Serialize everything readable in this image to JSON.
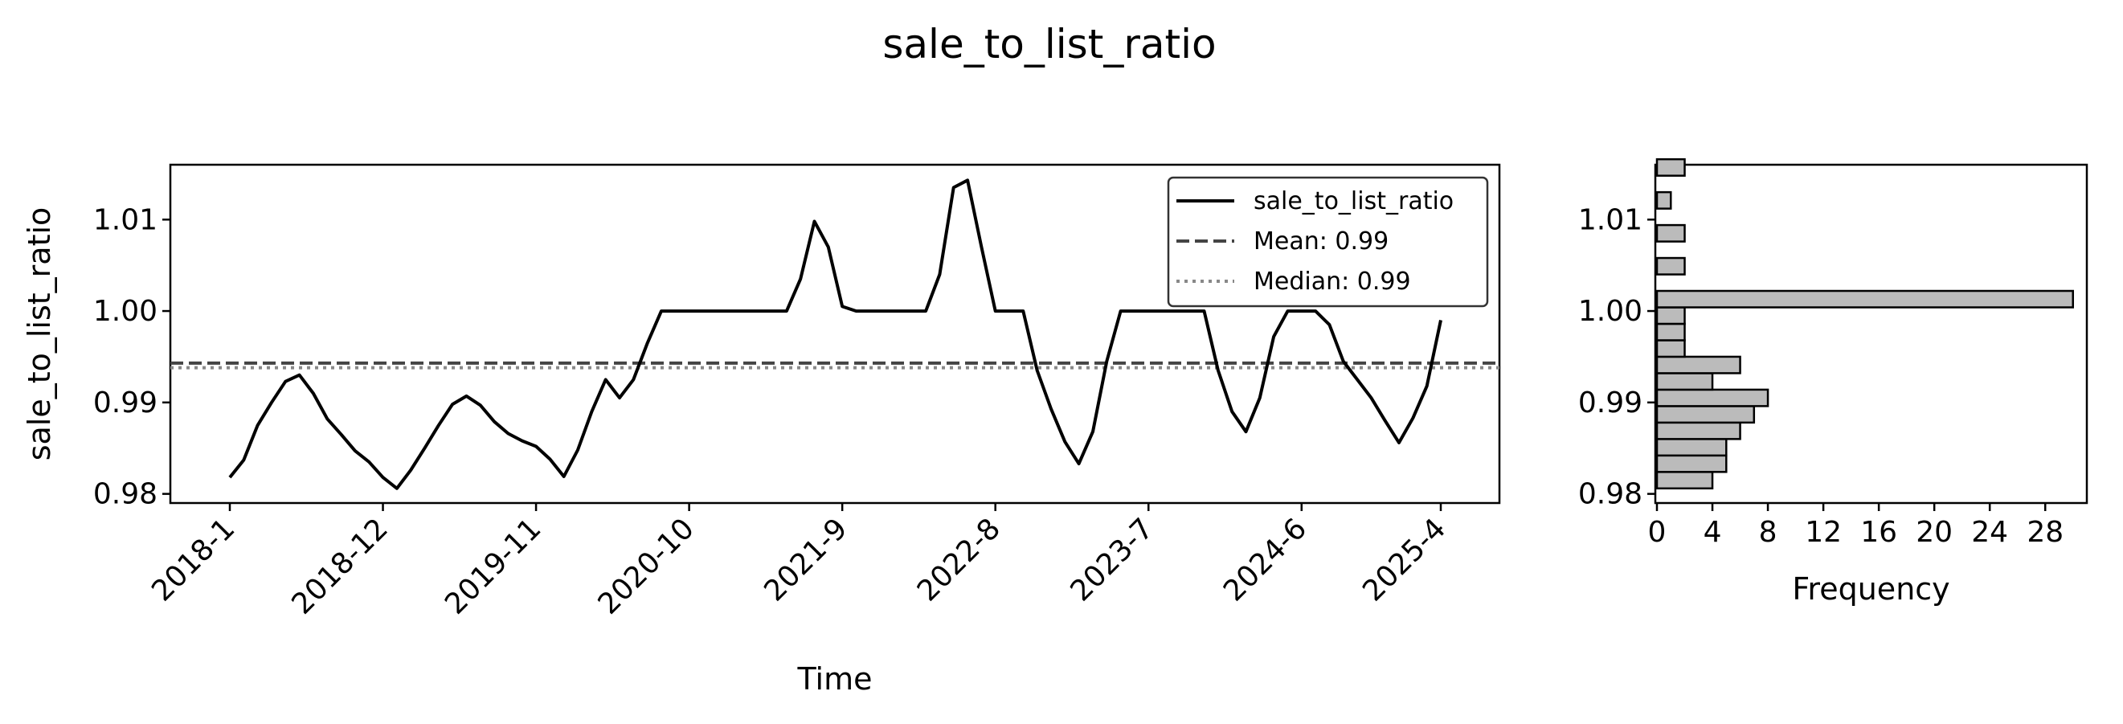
{
  "title": "sale_to_list_ratio",
  "chart_data": [
    {
      "type": "line",
      "xlabel": "Time",
      "ylabel": "sale_to_list_ratio",
      "ylim": [
        0.979,
        1.016
      ],
      "yticks": [
        "0.98",
        "0.99",
        "1.00",
        "1.01"
      ],
      "xtick_labels": [
        "2018-1",
        "2018-12",
        "2019-11",
        "2020-10",
        "2021-9",
        "2022-8",
        "2023-7",
        "2024-6",
        "2025-4"
      ],
      "grid": false,
      "legend_position": "top-right",
      "series": [
        {
          "name": "sale_to_list_ratio",
          "color": "#000000",
          "style": "solid",
          "x": [
            "2018-1",
            "2018-2",
            "2018-3",
            "2018-4",
            "2018-5",
            "2018-6",
            "2018-7",
            "2018-8",
            "2018-9",
            "2018-10",
            "2018-11",
            "2018-12",
            "2019-1",
            "2019-2",
            "2019-3",
            "2019-4",
            "2019-5",
            "2019-6",
            "2019-7",
            "2019-8",
            "2019-9",
            "2019-10",
            "2019-11",
            "2019-12",
            "2020-1",
            "2020-2",
            "2020-3",
            "2020-4",
            "2020-5",
            "2020-6",
            "2020-7",
            "2020-8",
            "2020-9",
            "2020-10",
            "2020-11",
            "2020-12",
            "2021-1",
            "2021-2",
            "2021-3",
            "2021-4",
            "2021-5",
            "2021-6",
            "2021-7",
            "2021-8",
            "2021-9",
            "2021-10",
            "2021-11",
            "2021-12",
            "2022-1",
            "2022-2",
            "2022-3",
            "2022-4",
            "2022-5",
            "2022-6",
            "2022-7",
            "2022-8",
            "2022-9",
            "2022-10",
            "2022-11",
            "2022-12",
            "2023-1",
            "2023-2",
            "2023-3",
            "2023-4",
            "2023-5",
            "2023-6",
            "2023-7",
            "2023-8",
            "2023-9",
            "2023-10",
            "2023-11",
            "2023-12",
            "2024-1",
            "2024-2",
            "2024-3",
            "2024-4",
            "2024-5",
            "2024-6",
            "2024-7",
            "2024-8",
            "2024-9",
            "2024-10",
            "2024-11",
            "2024-12",
            "2025-1",
            "2025-2",
            "2025-3",
            "2025-4"
          ],
          "values": [
            0.9818,
            0.9837,
            0.9875,
            0.99,
            0.9923,
            0.993,
            0.991,
            0.9882,
            0.9865,
            0.9847,
            0.9835,
            0.9818,
            0.9806,
            0.9826,
            0.985,
            0.9875,
            0.9898,
            0.9907,
            0.9897,
            0.9879,
            0.9866,
            0.9858,
            0.9852,
            0.9838,
            0.9819,
            0.9848,
            0.989,
            0.9925,
            0.9905,
            0.9925,
            0.9965,
            1.0,
            1.0,
            1.0,
            1.0,
            1.0,
            1.0,
            1.0,
            1.0,
            1.0,
            1.0,
            1.0035,
            1.0098,
            1.007,
            1.0005,
            1.0,
            1.0,
            1.0,
            1.0,
            1.0,
            1.0,
            1.004,
            1.0135,
            1.0143,
            1.007,
            1.0,
            1.0,
            1.0,
            0.9935,
            0.9893,
            0.9857,
            0.9833,
            0.9868,
            0.9945,
            1.0,
            1.0,
            1.0,
            1.0,
            1.0,
            1.0,
            1.0,
            0.9935,
            0.989,
            0.9868,
            0.9905,
            0.9972,
            1.0,
            1.0,
            1.0,
            0.9985,
            0.9945,
            0.9925,
            0.9905,
            0.988,
            0.9856,
            0.9883,
            0.9918,
            0.999
          ]
        },
        {
          "name": "Mean: 0.99",
          "color": "#444444",
          "style": "dashed",
          "value": 0.9943
        },
        {
          "name": "Median: 0.99",
          "color": "#888888",
          "style": "dotted",
          "value": 0.9938
        }
      ]
    },
    {
      "type": "bar",
      "orientation": "horizontal",
      "xlabel": "Frequency",
      "xlim": [
        0,
        31
      ],
      "xticks": [
        "0",
        "4",
        "8",
        "12",
        "16",
        "20",
        "24",
        "28"
      ],
      "ylim": [
        0.979,
        1.016
      ],
      "yticks": [
        "0.98",
        "0.99",
        "1.00",
        "1.01"
      ],
      "bar_color": "#bbbbbb",
      "bins": [
        {
          "from": 0.9806,
          "to": 0.9824,
          "count": 4
        },
        {
          "from": 0.9824,
          "to": 0.9842,
          "count": 5
        },
        {
          "from": 0.9842,
          "to": 0.986,
          "count": 5
        },
        {
          "from": 0.986,
          "to": 0.9878,
          "count": 6
        },
        {
          "from": 0.9878,
          "to": 0.9896,
          "count": 7
        },
        {
          "from": 0.9896,
          "to": 0.9914,
          "count": 8
        },
        {
          "from": 0.9914,
          "to": 0.9932,
          "count": 4
        },
        {
          "from": 0.9932,
          "to": 0.995,
          "count": 6
        },
        {
          "from": 0.995,
          "to": 0.9968,
          "count": 2
        },
        {
          "from": 0.9968,
          "to": 0.9986,
          "count": 2
        },
        {
          "from": 0.9986,
          "to": 1.0004,
          "count": 2
        },
        {
          "from": 1.0004,
          "to": 1.0022,
          "count": 30
        },
        {
          "from": 1.0022,
          "to": 1.004,
          "count": 0
        },
        {
          "from": 1.004,
          "to": 1.0058,
          "count": 2
        },
        {
          "from": 1.0058,
          "to": 1.0076,
          "count": 0
        },
        {
          "from": 1.0076,
          "to": 1.0094,
          "count": 2
        },
        {
          "from": 1.0094,
          "to": 1.0112,
          "count": 0
        },
        {
          "from": 1.0112,
          "to": 1.013,
          "count": 1
        },
        {
          "from": 1.013,
          "to": 1.0148,
          "count": 0
        },
        {
          "from": 1.0148,
          "to": 1.0166,
          "count": 2
        }
      ]
    }
  ]
}
